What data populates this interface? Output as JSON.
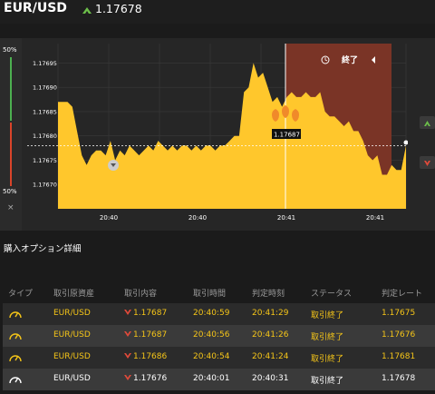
{
  "header": {
    "pair": "EUR/USD",
    "trend_icon": "up-arrow-icon",
    "price": "1.17678"
  },
  "meter": {
    "top_label": "50%",
    "bottom_label": "50%",
    "close_glyph": "×",
    "up_color": "#4caf50",
    "down_color": "#d9442a"
  },
  "chart": {
    "y_ticks": [
      "1.17695",
      "1.17690",
      "1.17685",
      "1.17680",
      "1.17675",
      "1.17670"
    ],
    "x_ticks": [
      "20:40",
      "20:40",
      "20:41",
      "20:41"
    ],
    "end_label": "終了",
    "end_icon": "clock-icon",
    "entry_label": "1.17687",
    "fill_color": "#ffc72c",
    "end_zone_color": "#7a3426"
  },
  "chart_data": {
    "type": "area",
    "ylim": [
      1.17665,
      1.17699
    ],
    "y_tick_values": [
      1.17695,
      1.1769,
      1.17685,
      1.1768,
      1.17675,
      1.1767
    ],
    "x_tick_labels": [
      "20:40",
      "20:40",
      "20:41",
      "20:41"
    ],
    "values": [
      1.17687,
      1.17687,
      1.17687,
      1.17686,
      1.17681,
      1.17676,
      1.17674,
      1.17676,
      1.17677,
      1.17677,
      1.17676,
      1.17679,
      1.17675,
      1.17677,
      1.17676,
      1.17678,
      1.17677,
      1.17676,
      1.17677,
      1.17678,
      1.17677,
      1.17679,
      1.17678,
      1.17677,
      1.17678,
      1.17677,
      1.17678,
      1.17678,
      1.17677,
      1.17678,
      1.17677,
      1.17678,
      1.17678,
      1.17677,
      1.17678,
      1.17678,
      1.17679,
      1.1768,
      1.1768,
      1.17689,
      1.1769,
      1.17695,
      1.17692,
      1.17693,
      1.1769,
      1.17687,
      1.17688,
      1.17686,
      1.17688,
      1.17689,
      1.17688,
      1.17688,
      1.17689,
      1.17688,
      1.17688,
      1.17689,
      1.17685,
      1.17684,
      1.17684,
      1.17683,
      1.17682,
      1.17683,
      1.17681,
      1.17681,
      1.17679,
      1.17676,
      1.17675,
      1.17676,
      1.17672,
      1.17672,
      1.17674,
      1.17673,
      1.17673,
      1.17678
    ]
  },
  "section_title": "購入オプション詳細",
  "table": {
    "headers": [
      "タイプ",
      "取引原資産",
      "取引内容",
      "取引時間",
      "判定時刻",
      "ステータス",
      "判定レート"
    ],
    "rows": [
      {
        "type_icon": "gauge-icon",
        "asset": "EUR/USD",
        "direction_icon": "down-arrow-icon",
        "content": "1.17687",
        "time": "20:40:59",
        "judge": "20:41:29",
        "status": "取引終了",
        "rate": "1.17675",
        "color": "#f5c518"
      },
      {
        "type_icon": "gauge-icon",
        "asset": "EUR/USD",
        "direction_icon": "down-arrow-icon",
        "content": "1.17687",
        "time": "20:40:56",
        "judge": "20:41:26",
        "status": "取引終了",
        "rate": "1.17676",
        "color": "#f5c518"
      },
      {
        "type_icon": "gauge-icon",
        "asset": "EUR/USD",
        "direction_icon": "down-arrow-icon",
        "content": "1.17686",
        "time": "20:40:54",
        "judge": "20:41:24",
        "status": "取引終了",
        "rate": "1.17681",
        "color": "#f5c518"
      },
      {
        "type_icon": "gauge-icon",
        "asset": "EUR/USD",
        "direction_icon": "down-arrow-icon",
        "content": "1.17676",
        "time": "20:40:01",
        "judge": "20:40:31",
        "status": "取引終了",
        "rate": "1.17678",
        "color": "#ffffff"
      }
    ]
  }
}
